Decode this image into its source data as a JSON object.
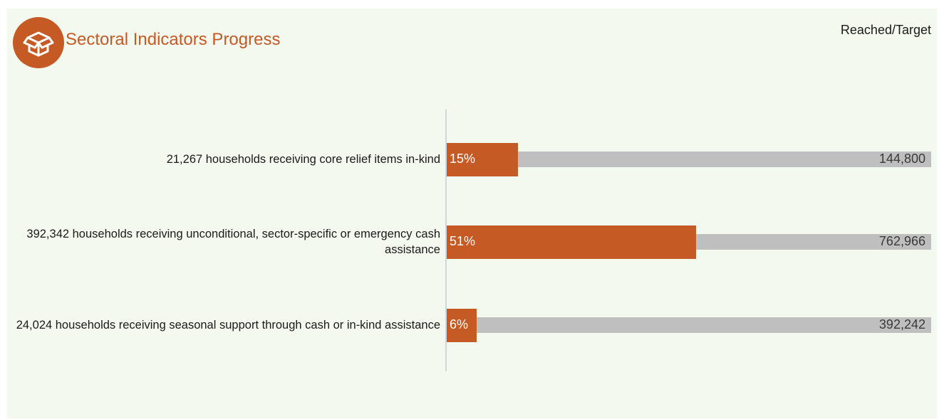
{
  "header": {
    "title": "Sectoral Indicators Progress",
    "icon": "open-box-icon",
    "legend_text": "Reached/Target"
  },
  "colors": {
    "reached": "#c55a24",
    "target": "#bfbfbf",
    "panel_bg": "#f3f9ef"
  },
  "chart_data": {
    "type": "bar",
    "orientation": "horizontal",
    "title": "Sectoral Indicators Progress",
    "legend": "Reached/Target",
    "categories": [
      "21,267 households receiving core relief items in-kind",
      "392,342 households receiving unconditional, sector-specific or emergency cash assistance",
      "24,024 households receiving seasonal support through cash or in-kind assistance"
    ],
    "reached": [
      21267,
      392342,
      24024
    ],
    "target": [
      144800,
      762966,
      392242
    ],
    "percent_labels": [
      "15%",
      "51%",
      "6%"
    ],
    "target_labels": [
      "144,800",
      "762,966",
      "392,242"
    ],
    "xlim": [
      0,
      1
    ]
  }
}
